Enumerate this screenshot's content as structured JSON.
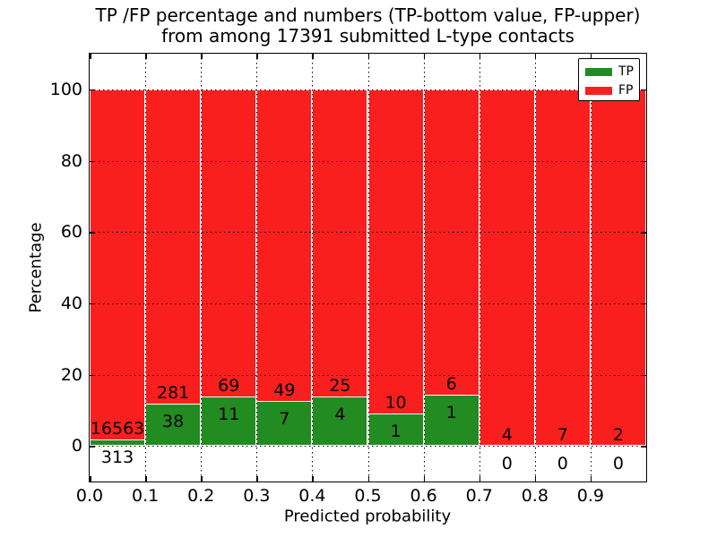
{
  "title": {
    "line1": "TP /FP percentage and numbers (TP-bottom value, FP-upper)",
    "line2": "from among 17391 submitted L-type contacts"
  },
  "axes": {
    "xlabel": "Predicted probability",
    "ylabel": "Percentage",
    "x_tick_labels": [
      "0.0",
      "0.1",
      "0.2",
      "0.3",
      "0.4",
      "0.5",
      "0.6",
      "0.7",
      "0.8",
      "0.9"
    ],
    "x_tick_values": [
      0.0,
      0.1,
      0.2,
      0.3,
      0.4,
      0.5,
      0.6,
      0.7,
      0.8,
      0.9
    ],
    "y_tick_labels": [
      "0",
      "20",
      "40",
      "60",
      "80",
      "100"
    ],
    "y_tick_values": [
      0,
      20,
      40,
      60,
      80,
      100
    ]
  },
  "legend": {
    "items": [
      {
        "label": "TP",
        "color": "#228b22"
      },
      {
        "label": "FP",
        "color": "#f91f1f"
      }
    ]
  },
  "chart_data": {
    "type": "bar",
    "stacked": true,
    "title": "TP /FP percentage and numbers (TP-bottom value, FP-upper) from among 17391 submitted L-type contacts",
    "xlabel": "Predicted probability",
    "ylabel": "Percentage",
    "total_contacts": 17391,
    "bins": [
      [
        0.0,
        0.1
      ],
      [
        0.1,
        0.2
      ],
      [
        0.2,
        0.3
      ],
      [
        0.3,
        0.4
      ],
      [
        0.4,
        0.5
      ],
      [
        0.5,
        0.6
      ],
      [
        0.6,
        0.7
      ],
      [
        0.7,
        0.8
      ],
      [
        0.8,
        0.9
      ],
      [
        0.9,
        1.0
      ]
    ],
    "series": [
      {
        "name": "TP",
        "color": "#228b22",
        "counts": [
          313,
          38,
          11,
          7,
          4,
          1,
          1,
          0,
          0,
          0
        ]
      },
      {
        "name": "FP",
        "color": "#f91f1f",
        "counts": [
          16563,
          281,
          69,
          49,
          25,
          10,
          6,
          4,
          7,
          2
        ]
      }
    ],
    "tp_percent_of_bin": [
      1.85,
      11.91,
      13.75,
      12.5,
      13.79,
      9.09,
      14.29,
      0,
      0,
      0
    ],
    "xlim": [
      0.0,
      1.0
    ],
    "ylim": [
      -10,
      110
    ],
    "grid": "dotted",
    "legend_position": "upper right"
  }
}
